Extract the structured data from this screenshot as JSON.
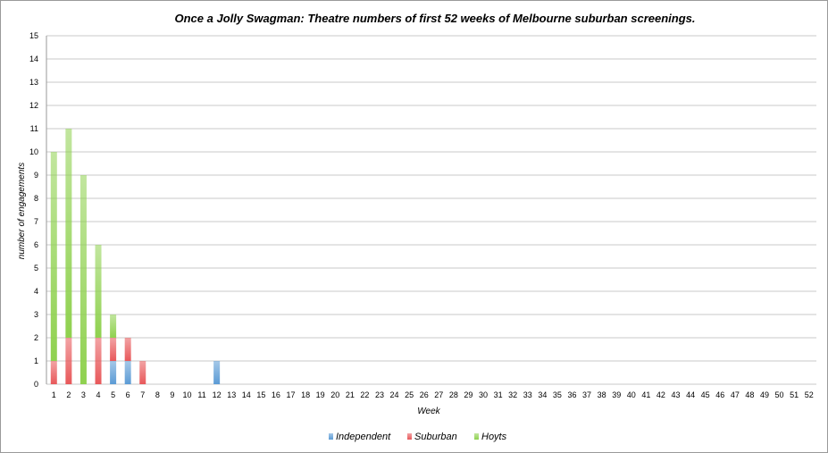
{
  "chart_data": {
    "type": "bar",
    "stacked": true,
    "title": "Once a Jolly Swagman: Theatre numbers of first 52 weeks of Melbourne suburban screenings.",
    "xlabel": "Week",
    "ylabel": "number of engagements",
    "ylim": [
      0,
      15
    ],
    "yticks": [
      0,
      1,
      2,
      3,
      4,
      5,
      6,
      7,
      8,
      9,
      10,
      11,
      12,
      13,
      14,
      15
    ],
    "grid": true,
    "legend_position": "bottom",
    "categories": [
      "1",
      "2",
      "3",
      "4",
      "5",
      "6",
      "7",
      "8",
      "9",
      "10",
      "11",
      "12",
      "13",
      "14",
      "15",
      "16",
      "17",
      "18",
      "19",
      "20",
      "21",
      "22",
      "23",
      "24",
      "25",
      "26",
      "27",
      "28",
      "29",
      "30",
      "31",
      "32",
      "33",
      "34",
      "35",
      "36",
      "37",
      "38",
      "39",
      "40",
      "41",
      "42",
      "43",
      "44",
      "45",
      "46",
      "47",
      "48",
      "49",
      "50",
      "51",
      "52"
    ],
    "series": [
      {
        "name": "Independent",
        "color": "#5b9bd5",
        "values": [
          0,
          0,
          0,
          0,
          1,
          1,
          0,
          0,
          0,
          0,
          0,
          1,
          0,
          0,
          0,
          0,
          0,
          0,
          0,
          0,
          0,
          0,
          0,
          0,
          0,
          0,
          0,
          0,
          0,
          0,
          0,
          0,
          0,
          0,
          0,
          0,
          0,
          0,
          0,
          0,
          0,
          0,
          0,
          0,
          0,
          0,
          0,
          0,
          0,
          0,
          0,
          0
        ]
      },
      {
        "name": "Suburban",
        "color": "#e8585a",
        "values": [
          1,
          2,
          0,
          2,
          1,
          1,
          1,
          0,
          0,
          0,
          0,
          0,
          0,
          0,
          0,
          0,
          0,
          0,
          0,
          0,
          0,
          0,
          0,
          0,
          0,
          0,
          0,
          0,
          0,
          0,
          0,
          0,
          0,
          0,
          0,
          0,
          0,
          0,
          0,
          0,
          0,
          0,
          0,
          0,
          0,
          0,
          0,
          0,
          0,
          0,
          0,
          0
        ]
      },
      {
        "name": "Hoyts",
        "color": "#8fd14f",
        "values": [
          9,
          9,
          9,
          4,
          1,
          0,
          0,
          0,
          0,
          0,
          0,
          0,
          0,
          0,
          0,
          0,
          0,
          0,
          0,
          0,
          0,
          0,
          0,
          0,
          0,
          0,
          0,
          0,
          0,
          0,
          0,
          0,
          0,
          0,
          0,
          0,
          0,
          0,
          0,
          0,
          0,
          0,
          0,
          0,
          0,
          0,
          0,
          0,
          0,
          0,
          0,
          0
        ]
      }
    ]
  }
}
